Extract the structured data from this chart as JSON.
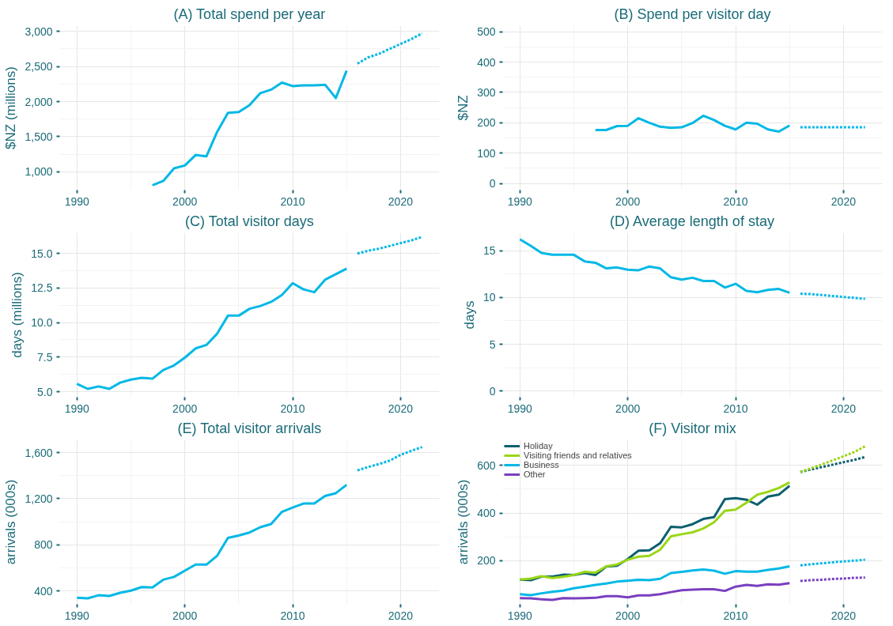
{
  "chart_data": [
    {
      "type": "line",
      "title": "(A) Total spend per year",
      "ylabel": "$NZ (millions)",
      "xlim": [
        1988.4,
        2023.6
      ],
      "xticks": [
        1990,
        2000,
        2010,
        2020
      ],
      "ylim": [
        740,
        3080
      ],
      "yticks": [
        {
          "value": 1000,
          "label": "1,000"
        },
        {
          "value": 1500,
          "label": "1,500"
        },
        {
          "value": 2000,
          "label": "2,000"
        },
        {
          "value": 2500,
          "label": "2,500"
        },
        {
          "value": 3000,
          "label": "3,000"
        }
      ],
      "grid": true,
      "legend": false,
      "series": [
        {
          "color": "#00b8e6",
          "line_style": "solid",
          "x": [
            1997,
            1998,
            1999,
            2000,
            2001,
            2002,
            2003,
            2004,
            2005,
            2006,
            2007,
            2008,
            2009,
            2010,
            2011,
            2012,
            2013,
            2014,
            2015
          ],
          "values": [
            810,
            870,
            1050,
            1090,
            1240,
            1220,
            1570,
            1840,
            1850,
            1950,
            2120,
            2170,
            2270,
            2220,
            2230,
            2230,
            2240,
            2050,
            2440
          ]
        },
        {
          "color": "#00b8e6",
          "line_style": "dotted",
          "x": [
            2016,
            2017,
            2018,
            2019,
            2020,
            2021,
            2022
          ],
          "values": [
            2540,
            2630,
            2680,
            2750,
            2820,
            2890,
            2970
          ]
        }
      ]
    },
    {
      "type": "line",
      "title": "(B) Spend per visitor day",
      "ylabel": "$NZ",
      "xlim": [
        1988.4,
        2023.6
      ],
      "xticks": [
        1990,
        2000,
        2010,
        2020
      ],
      "ylim": [
        -22,
        520
      ],
      "yticks": [
        0,
        100,
        200,
        300,
        400,
        500
      ],
      "grid": true,
      "legend": false,
      "series": [
        {
          "color": "#00b8e6",
          "line_style": "solid",
          "x": [
            1997,
            1998,
            1999,
            2000,
            2001,
            2002,
            2003,
            2004,
            2005,
            2006,
            2007,
            2008,
            2009,
            2010,
            2011,
            2012,
            2013,
            2014,
            2015
          ],
          "values": [
            176,
            176,
            189,
            190,
            215,
            200,
            187,
            183,
            185,
            199,
            223,
            209,
            190,
            178,
            200,
            197,
            178,
            171,
            191
          ]
        },
        {
          "color": "#00b8e6",
          "line_style": "dotted",
          "x": [
            2016,
            2017,
            2018,
            2019,
            2020,
            2021,
            2022
          ],
          "values": [
            185,
            185,
            185,
            185,
            185,
            185,
            185
          ]
        }
      ]
    },
    {
      "type": "line",
      "title": "(C) Total visitor days",
      "ylabel": "days (millions)",
      "xlim": [
        1988.4,
        2023.6
      ],
      "xticks": [
        1990,
        2000,
        2010,
        2020
      ],
      "ylim": [
        4.6,
        16.5
      ],
      "yticks": [
        {
          "value": 5,
          "label": "5.0"
        },
        {
          "value": 7.5,
          "label": "7.5"
        },
        {
          "value": 10,
          "label": "10.0"
        },
        {
          "value": 12.5,
          "label": "12.5"
        },
        {
          "value": 15,
          "label": "15.0"
        }
      ],
      "grid": true,
      "legend": false,
      "series": [
        {
          "color": "#00b8e6",
          "line_style": "solid",
          "x": [
            1990,
            1991,
            1992,
            1993,
            1994,
            1995,
            1996,
            1997,
            1998,
            1999,
            2000,
            2001,
            2002,
            2003,
            2004,
            2005,
            2006,
            2007,
            2008,
            2009,
            2010,
            2011,
            2012,
            2013,
            2014,
            2015
          ],
          "values": [
            5.56,
            5.2,
            5.38,
            5.2,
            5.65,
            5.87,
            6.0,
            5.94,
            6.57,
            6.9,
            7.46,
            8.13,
            8.38,
            9.2,
            10.5,
            10.5,
            11.0,
            11.2,
            11.5,
            12.0,
            12.85,
            12.4,
            12.2,
            13.1,
            13.5,
            13.9
          ]
        },
        {
          "color": "#00b8e6",
          "line_style": "dotted",
          "x": [
            2016,
            2017,
            2018,
            2019,
            2020,
            2021,
            2022
          ],
          "values": [
            15.0,
            15.2,
            15.35,
            15.55,
            15.75,
            15.95,
            16.2
          ]
        }
      ]
    },
    {
      "type": "line",
      "title": "(D) Average length of stay",
      "ylabel": "days",
      "xlim": [
        1988.4,
        2023.6
      ],
      "xticks": [
        1990,
        2000,
        2010,
        2020
      ],
      "ylim": [
        -0.65,
        16.9
      ],
      "yticks": [
        0,
        5,
        10,
        15
      ],
      "grid": true,
      "legend": false,
      "series": [
        {
          "color": "#00b8e6",
          "line_style": "solid",
          "x": [
            1990,
            1991,
            1992,
            1993,
            1994,
            1995,
            1996,
            1997,
            1998,
            1999,
            2000,
            2001,
            2002,
            2003,
            2004,
            2005,
            2006,
            2007,
            2008,
            2009,
            2010,
            2011,
            2012,
            2013,
            2014,
            2015
          ],
          "values": [
            16.2,
            15.5,
            14.75,
            14.55,
            14.55,
            14.55,
            13.85,
            13.7,
            13.1,
            13.2,
            12.95,
            12.9,
            13.3,
            13.1,
            12.15,
            11.9,
            12.1,
            11.75,
            11.75,
            11.05,
            11.45,
            10.7,
            10.55,
            10.8,
            10.9,
            10.5
          ]
        },
        {
          "color": "#00b8e6",
          "line_style": "dotted",
          "x": [
            2016,
            2017,
            2018,
            2019,
            2020,
            2021,
            2022
          ],
          "values": [
            10.4,
            10.35,
            10.25,
            10.15,
            10.05,
            9.95,
            9.85
          ]
        }
      ]
    },
    {
      "type": "line",
      "title": "(E) Total visitor arrivals",
      "ylabel": "arrivals (000s)",
      "xlim": [
        1988.4,
        2023.6
      ],
      "xticks": [
        1990,
        2000,
        2010,
        2020
      ],
      "ylim": [
        285,
        1710
      ],
      "yticks": [
        400,
        800,
        {
          "value": 1200,
          "label": "1,200"
        },
        {
          "value": 1600,
          "label": "1,600"
        }
      ],
      "grid": true,
      "legend": false,
      "series": [
        {
          "color": "#00b8e6",
          "line_style": "solid",
          "x": [
            1990,
            1991,
            1992,
            1993,
            1994,
            1995,
            1996,
            1997,
            1998,
            1999,
            2000,
            2001,
            2002,
            2003,
            2004,
            2005,
            2006,
            2007,
            2008,
            2009,
            2010,
            2011,
            2012,
            2013,
            2014,
            2015
          ],
          "values": [
            341,
            336,
            363,
            357,
            384,
            403,
            434,
            431,
            498,
            522,
            576,
            629,
            629,
            706,
            860,
            881,
            907,
            953,
            980,
            1086,
            1123,
            1158,
            1158,
            1224,
            1248,
            1320
          ]
        },
        {
          "color": "#00b8e6",
          "line_style": "dotted",
          "x": [
            2016,
            2017,
            2018,
            2019,
            2020,
            2021,
            2022
          ],
          "values": [
            1445,
            1475,
            1500,
            1530,
            1580,
            1615,
            1648
          ]
        }
      ]
    },
    {
      "type": "line",
      "title": "(F) Visitor mix",
      "ylabel": "arrivals (000s)",
      "xlim": [
        1988.4,
        2023.6
      ],
      "xticks": [
        1990,
        2000,
        2010,
        2020
      ],
      "ylim": [
        17,
        707
      ],
      "yticks": [
        200,
        400,
        600
      ],
      "grid": true,
      "legend": "top left",
      "series": [
        {
          "name": "Holiday",
          "color": "#0a5f6f",
          "line_style": "solid",
          "x": [
            1990,
            1991,
            1992,
            1993,
            1994,
            1995,
            1996,
            1997,
            1998,
            1999,
            2000,
            2001,
            2002,
            2003,
            2004,
            2005,
            2006,
            2007,
            2008,
            2009,
            2010,
            2011,
            2012,
            2013,
            2014,
            2015
          ],
          "values": [
            121,
            118,
            133,
            133,
            141,
            140,
            148,
            140,
            175,
            179,
            207,
            242,
            243,
            273,
            342,
            340,
            353,
            375,
            383,
            458,
            462,
            456,
            435,
            469,
            477,
            514
          ]
        },
        {
          "name": "Visiting friends and relatives",
          "color": "#9ad616",
          "line_style": "solid",
          "x": [
            1990,
            1991,
            1992,
            1993,
            1994,
            1995,
            1996,
            1997,
            1998,
            1999,
            2000,
            2001,
            2002,
            2003,
            2004,
            2005,
            2006,
            2007,
            2008,
            2009,
            2010,
            2011,
            2012,
            2013,
            2014,
            2015
          ],
          "values": [
            121,
            125,
            135,
            127,
            132,
            140,
            153,
            150,
            176,
            184,
            204,
            217,
            220,
            246,
            302,
            311,
            319,
            335,
            361,
            409,
            414,
            443,
            477,
            489,
            505,
            528
          ]
        },
        {
          "name": "Business",
          "color": "#00b8e6",
          "line_style": "solid",
          "x": [
            1990,
            1991,
            1992,
            1993,
            1994,
            1995,
            1996,
            1997,
            1998,
            1999,
            2000,
            2001,
            2002,
            2003,
            2004,
            2005,
            2006,
            2007,
            2008,
            2009,
            2010,
            2011,
            2012,
            2013,
            2014,
            2015
          ],
          "values": [
            59,
            55,
            63,
            69,
            74,
            84,
            91,
            98,
            104,
            112,
            116,
            120,
            118,
            124,
            148,
            153,
            159,
            163,
            158,
            145,
            156,
            154,
            154,
            161,
            167,
            176
          ]
        },
        {
          "name": "Other",
          "color": "#7a3fbf",
          "line_style": "solid",
          "x": [
            1990,
            1991,
            1992,
            1993,
            1994,
            1995,
            1996,
            1997,
            1998,
            1999,
            2000,
            2001,
            2002,
            2003,
            2004,
            2005,
            2006,
            2007,
            2008,
            2009,
            2010,
            2011,
            2012,
            2013,
            2014,
            2015
          ],
          "values": [
            43,
            42,
            38,
            35,
            43,
            42,
            43,
            44,
            51,
            51,
            46,
            54,
            54,
            59,
            68,
            76,
            78,
            80,
            80,
            73,
            91,
            98,
            94,
            101,
            99,
            106
          ]
        },
        {
          "color": "#0a5f6f",
          "line_style": "dotted",
          "x": [
            2016,
            2017,
            2018,
            2019,
            2020,
            2021,
            2022
          ],
          "values": [
            572,
            583,
            593,
            603,
            613,
            623,
            635
          ]
        },
        {
          "color": "#9ad616",
          "line_style": "dotted",
          "x": [
            2016,
            2017,
            2018,
            2019,
            2020,
            2021,
            2022
          ],
          "values": [
            572,
            588,
            604,
            621,
            638,
            656,
            680
          ]
        },
        {
          "color": "#00b8e6",
          "line_style": "dotted",
          "x": [
            2016,
            2017,
            2018,
            2019,
            2020,
            2021,
            2022
          ],
          "values": [
            180,
            185,
            189,
            193,
            197,
            200,
            204
          ]
        },
        {
          "color": "#7a3fbf",
          "line_style": "dotted",
          "x": [
            2016,
            2017,
            2018,
            2019,
            2020,
            2021,
            2022
          ],
          "values": [
            115,
            118,
            120,
            123,
            125,
            128,
            129
          ]
        }
      ]
    }
  ]
}
